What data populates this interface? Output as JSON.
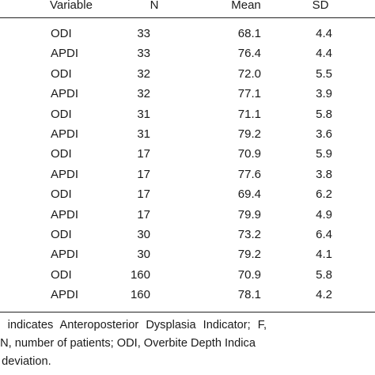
{
  "table": {
    "headers": {
      "variable": "Variable",
      "n": "N",
      "mean": "Mean",
      "sd": "SD"
    },
    "rows": [
      {
        "variable": "ODI",
        "n": "33",
        "mean": "68.1",
        "sd": "4.4"
      },
      {
        "variable": "APDI",
        "n": "33",
        "mean": "76.4",
        "sd": "4.4"
      },
      {
        "variable": "ODI",
        "n": "32",
        "mean": "72.0",
        "sd": "5.5"
      },
      {
        "variable": "APDI",
        "n": "32",
        "mean": "77.1",
        "sd": "3.9"
      },
      {
        "variable": "ODI",
        "n": "31",
        "mean": "71.1",
        "sd": "5.8"
      },
      {
        "variable": "APDI",
        "n": "31",
        "mean": "79.2",
        "sd": "3.6"
      },
      {
        "variable": "ODI",
        "n": "17",
        "mean": "70.9",
        "sd": "5.9"
      },
      {
        "variable": "APDI",
        "n": "17",
        "mean": "77.6",
        "sd": "3.8"
      },
      {
        "variable": "ODI",
        "n": "17",
        "mean": "69.4",
        "sd": "6.2"
      },
      {
        "variable": "APDI",
        "n": "17",
        "mean": "79.9",
        "sd": "4.9"
      },
      {
        "variable": "ODI",
        "n": "30",
        "mean": "73.2",
        "sd": "6.4"
      },
      {
        "variable": "APDI",
        "n": "30",
        "mean": "79.2",
        "sd": "4.1"
      },
      {
        "variable": "ODI",
        "n": "160",
        "mean": "70.9",
        "sd": "5.8"
      },
      {
        "variable": "APDI",
        "n": "160",
        "mean": "78.1",
        "sd": "4.2"
      }
    ]
  },
  "footnote": {
    "line1": "DI indicates Anteroposterior Dysplasia Indicator; F,",
    "line2": "; N, number of patients; ODI, Overbite Depth Indica",
    "line3": "d deviation."
  },
  "colors": {
    "text": "#1a1a1a",
    "rule": "#222222",
    "background": "#ffffff"
  }
}
